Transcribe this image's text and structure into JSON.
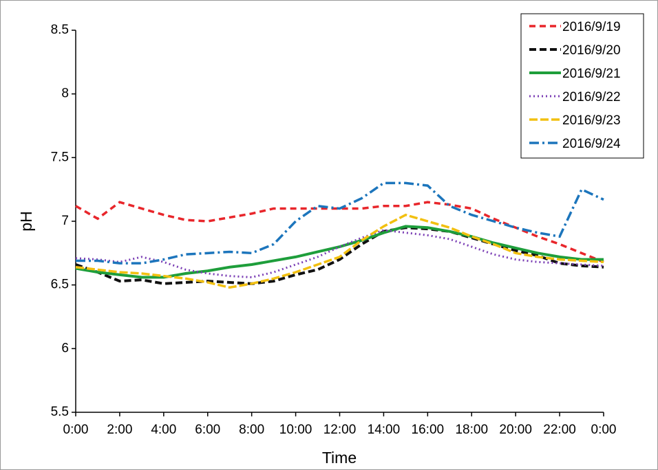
{
  "chart_data": {
    "type": "line",
    "xlabel": "Time",
    "ylabel": "pH",
    "x": [
      0,
      1,
      2,
      3,
      4,
      5,
      6,
      7,
      8,
      9,
      10,
      11,
      12,
      13,
      14,
      15,
      16,
      17,
      18,
      19,
      20,
      21,
      22,
      23,
      24
    ],
    "xlim": [
      0,
      24
    ],
    "xticks": [
      {
        "value": 0,
        "label": "0:00"
      },
      {
        "value": 2,
        "label": "2:00"
      },
      {
        "value": 4,
        "label": "4:00"
      },
      {
        "value": 6,
        "label": "6:00"
      },
      {
        "value": 8,
        "label": "8:00"
      },
      {
        "value": 10,
        "label": "10:00"
      },
      {
        "value": 12,
        "label": "12:00"
      },
      {
        "value": 14,
        "label": "14:00"
      },
      {
        "value": 16,
        "label": "16:00"
      },
      {
        "value": 18,
        "label": "18:00"
      },
      {
        "value": 20,
        "label": "20:00"
      },
      {
        "value": 22,
        "label": "22:00"
      },
      {
        "value": 24,
        "label": "0:00"
      }
    ],
    "ylim": [
      5.5,
      8.5
    ],
    "yticks": [
      5.5,
      6,
      6.5,
      7,
      7.5,
      8,
      8.5
    ],
    "legend": "upper right",
    "series": [
      {
        "name": "2016/9/19",
        "color": "#e8262b",
        "values": [
          7.12,
          7.02,
          7.15,
          7.1,
          7.05,
          7.01,
          7.0,
          7.03,
          7.06,
          7.1,
          7.1,
          7.1,
          7.1,
          7.1,
          7.12,
          7.12,
          7.15,
          7.13,
          7.1,
          7.02,
          6.95,
          6.88,
          6.82,
          6.75,
          6.68
        ]
      },
      {
        "name": "2016/9/20",
        "color": "#111111",
        "values": [
          6.66,
          6.6,
          6.53,
          6.54,
          6.51,
          6.52,
          6.53,
          6.52,
          6.51,
          6.53,
          6.58,
          6.62,
          6.7,
          6.82,
          6.92,
          6.95,
          6.94,
          6.92,
          6.87,
          6.82,
          6.77,
          6.73,
          6.67,
          6.65,
          6.64
        ]
      },
      {
        "name": "2016/9/21",
        "color": "#1e9e3b",
        "values": [
          6.63,
          6.6,
          6.58,
          6.56,
          6.56,
          6.59,
          6.61,
          6.64,
          6.66,
          6.69,
          6.72,
          6.76,
          6.8,
          6.85,
          6.91,
          6.96,
          6.95,
          6.92,
          6.88,
          6.83,
          6.79,
          6.75,
          6.72,
          6.7,
          6.7
        ]
      },
      {
        "name": "2016/9/22",
        "color": "#7b3fb5",
        "values": [
          6.71,
          6.7,
          6.68,
          6.72,
          6.68,
          6.62,
          6.59,
          6.57,
          6.56,
          6.6,
          6.66,
          6.72,
          6.8,
          6.87,
          6.93,
          6.91,
          6.89,
          6.86,
          6.8,
          6.74,
          6.7,
          6.68,
          6.67,
          6.66,
          6.65
        ]
      },
      {
        "name": "2016/9/23",
        "color": "#f2c010",
        "values": [
          6.64,
          6.62,
          6.6,
          6.59,
          6.57,
          6.55,
          6.52,
          6.48,
          6.51,
          6.55,
          6.6,
          6.66,
          6.72,
          6.85,
          6.96,
          7.05,
          7.0,
          6.95,
          6.88,
          6.82,
          6.75,
          6.72,
          6.7,
          6.69,
          6.68
        ]
      },
      {
        "name": "2016/9/24",
        "color": "#1c75bc",
        "values": [
          6.69,
          6.69,
          6.67,
          6.67,
          6.7,
          6.74,
          6.75,
          6.76,
          6.75,
          6.82,
          7.0,
          7.12,
          7.1,
          7.18,
          7.3,
          7.3,
          7.28,
          7.12,
          7.05,
          7.0,
          6.95,
          6.91,
          6.88,
          7.25,
          7.17
        ]
      }
    ]
  }
}
